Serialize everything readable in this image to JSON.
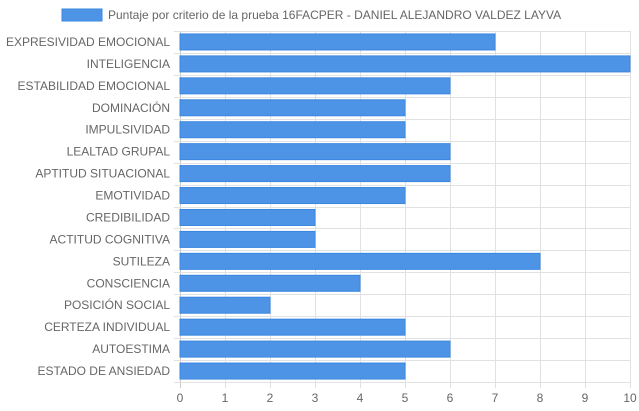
{
  "chart_data": {
    "type": "bar",
    "orientation": "horizontal",
    "legend": "top-center",
    "grid": true,
    "xlim": [
      0,
      10
    ],
    "x_ticks": [
      "0",
      "1",
      "2",
      "3",
      "4",
      "5",
      "6",
      "7",
      "8",
      "9",
      "10"
    ],
    "categories": [
      "EXPRESIVIDAD EMOCIONAL",
      "INTELIGENCIA",
      "ESTABILIDAD EMOCIONAL",
      "DOMINACIÓN",
      "IMPULSIVIDAD",
      "LEALTAD GRUPAL",
      "APTITUD SITUACIONAL",
      "EMOTIVIDAD",
      "CREDIBILIDAD",
      "ACTITUD COGNITIVA",
      "SUTILEZA",
      "CONSCIENCIA",
      "POSICIÓN SOCIAL",
      "CERTEZA INDIVIDUAL",
      "AUTOESTIMA",
      "ESTADO DE ANSIEDAD"
    ],
    "series": [
      {
        "name": "Puntaje por criterio de la prueba 16FACPER - DANIEL ALEJANDRO VALDEZ LAYVA",
        "color": "#4d94e6",
        "border_color": "#3a87e0",
        "values": [
          7,
          10,
          6,
          5,
          5,
          6,
          6,
          5,
          3,
          3,
          8,
          4,
          2,
          5,
          6,
          5
        ]
      }
    ]
  }
}
